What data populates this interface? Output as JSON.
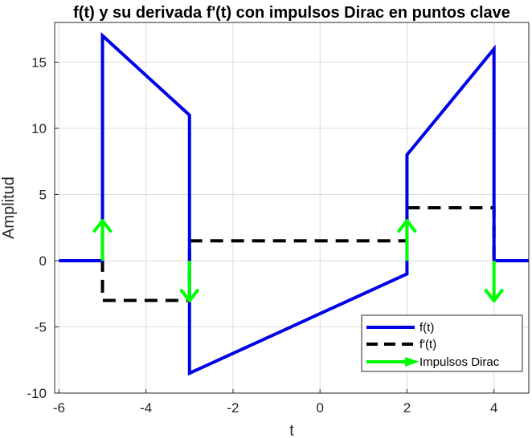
{
  "chart_data": {
    "type": "line",
    "title": "f(t) y su derivada f'(t) con impulsos Dirac en puntos clave",
    "xlabel": "t",
    "ylabel": "Amplitud",
    "xlim": [
      -6.1,
      4.8
    ],
    "ylim": [
      -10,
      18
    ],
    "xticks": [
      -6,
      -4,
      -2,
      0,
      2,
      4
    ],
    "yticks": [
      -10,
      -5,
      0,
      5,
      10,
      15
    ],
    "grid": true,
    "legend_position": "bottom-right",
    "colors": {
      "f": "#0000e6",
      "df": "#000000",
      "impulse": "#00ff00"
    },
    "series": [
      {
        "name": "f(t)",
        "style": "solid",
        "x": [
          -6,
          -5,
          -5,
          -3,
          -3,
          2,
          2,
          4,
          4,
          4.8
        ],
        "y": [
          0,
          0,
          17,
          11,
          -8.5,
          -1,
          8,
          16,
          0,
          0
        ]
      },
      {
        "name": "f'(t)",
        "style": "dashed",
        "x": [
          -6,
          -5,
          -5,
          -3,
          -3,
          2,
          2,
          4,
          4,
          4.8
        ],
        "y": [
          0,
          0,
          -3,
          -3,
          1.5,
          1.5,
          4,
          4,
          0,
          0
        ]
      }
    ],
    "impulses": {
      "name": "Impulsos Dirac",
      "x": [
        -5,
        -3,
        2,
        4
      ],
      "direction": [
        "up",
        "down",
        "up",
        "down"
      ]
    }
  }
}
